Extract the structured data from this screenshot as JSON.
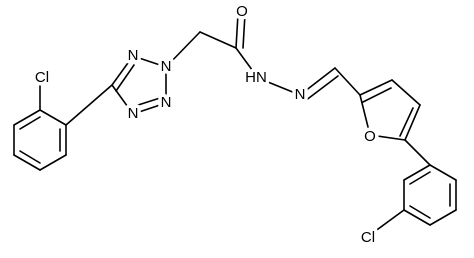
{
  "atom_labels": [
    "Cl",
    "N",
    "N",
    "N",
    "N",
    "O",
    "HN",
    "N",
    "O",
    "Cl"
  ]
}
